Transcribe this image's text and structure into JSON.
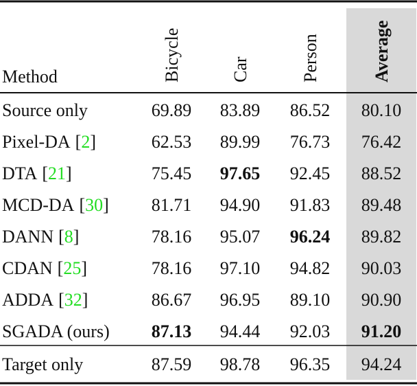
{
  "table": {
    "header": {
      "method": "Method",
      "columns": [
        "Bicycle",
        "Car",
        "Person",
        "Average"
      ],
      "bold_columns": [
        3
      ]
    },
    "brackets": [
      "[",
      "]"
    ],
    "groups": [
      [
        {
          "method": "Source only",
          "values": [
            "69.89",
            "83.89",
            "86.52",
            "80.10"
          ],
          "bold": []
        },
        {
          "method": "Pixel-DA",
          "cite": "2",
          "values": [
            "62.53",
            "89.99",
            "76.73",
            "76.42"
          ],
          "bold": []
        },
        {
          "method": "DTA",
          "cite": "21",
          "values": [
            "75.45",
            "97.65",
            "92.45",
            "88.52"
          ],
          "bold": [
            1
          ]
        },
        {
          "method": "MCD-DA",
          "cite": "30",
          "values": [
            "81.71",
            "94.90",
            "91.83",
            "89.48"
          ],
          "bold": []
        },
        {
          "method": "DANN",
          "cite": "8",
          "values": [
            "78.16",
            "95.07",
            "96.24",
            "89.82"
          ],
          "bold": [
            2
          ]
        },
        {
          "method": "CDAN",
          "cite": "25",
          "values": [
            "78.16",
            "97.10",
            "94.82",
            "90.03"
          ],
          "bold": []
        },
        {
          "method": "ADDA",
          "cite": "32",
          "values": [
            "86.67",
            "96.95",
            "89.10",
            "90.90"
          ],
          "bold": []
        },
        {
          "method": "SGADA (ours)",
          "values": [
            "87.13",
            "94.44",
            "92.03",
            "91.20"
          ],
          "bold": [
            0,
            3
          ]
        }
      ],
      [
        {
          "method": "Target only",
          "values": [
            "87.59",
            "98.78",
            "96.35",
            "94.24"
          ],
          "bold": []
        }
      ]
    ],
    "highlight_column": 3,
    "highlight_color": "#d9d9d9",
    "cite_color": "#22dd22"
  }
}
